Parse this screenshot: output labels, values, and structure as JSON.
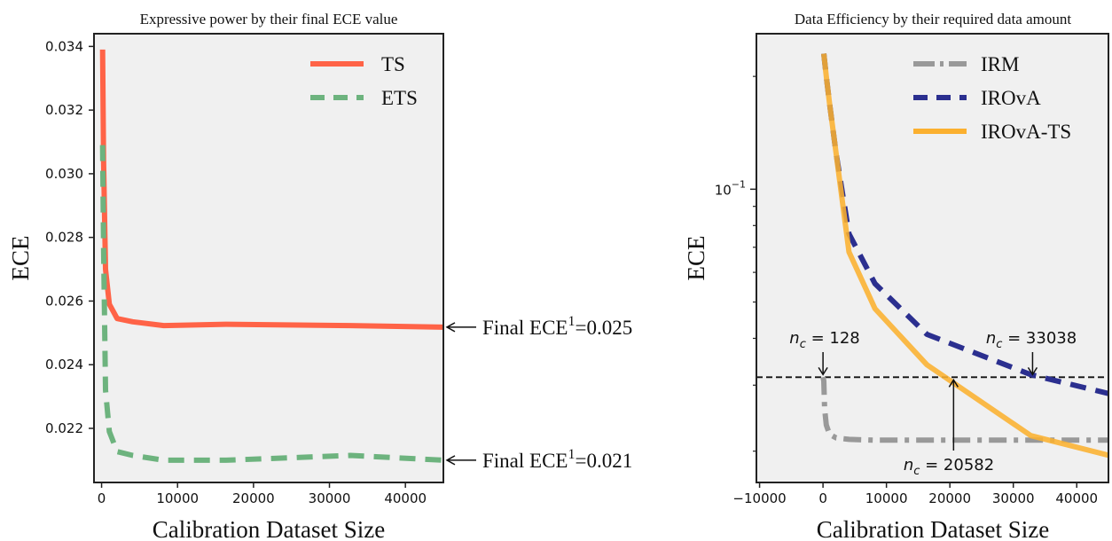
{
  "colors": {
    "panel_bg": "#f0f0f0",
    "ts": "#ff6347",
    "ets": "#6db37e",
    "irm": "#999999",
    "irova": "#2b2f8f",
    "irova_ts": "#fbb02f"
  },
  "chart_data": [
    {
      "type": "line",
      "title": "Expressive power by their final ECE value",
      "xlabel": "Calibration Dataset Size",
      "ylabel": "ECE",
      "xlim": [
        -1000,
        45000
      ],
      "ylim": [
        0.0203,
        0.0344
      ],
      "xticks": [
        0,
        10000,
        20000,
        30000,
        40000
      ],
      "xtick_labels": [
        "0",
        "10000",
        "20000",
        "30000",
        "40000"
      ],
      "yticks": [
        0.022,
        0.024,
        0.026,
        0.028,
        0.03,
        0.032,
        0.034
      ],
      "ytick_labels": [
        "0.022",
        "0.024",
        "0.026",
        "0.028",
        "0.030",
        "0.032",
        "0.034"
      ],
      "legend_position": "top-right",
      "grid": false,
      "series": [
        {
          "name": "TS",
          "style": "solid",
          "x": [
            128,
            256,
            512,
            1024,
            2048,
            4096,
            8192,
            16384,
            32768,
            45000
          ],
          "y": [
            0.0339,
            0.0304,
            0.027,
            0.0259,
            0.02545,
            0.02535,
            0.02523,
            0.02527,
            0.02523,
            0.02518
          ]
        },
        {
          "name": "ETS",
          "style": "dashed",
          "x": [
            128,
            256,
            512,
            1024,
            2048,
            4096,
            8192,
            16384,
            32768,
            45000
          ],
          "y": [
            0.0309,
            0.0277,
            0.0232,
            0.0219,
            0.02127,
            0.02115,
            0.021,
            0.021,
            0.02115,
            0.021
          ]
        }
      ],
      "annotations": [
        {
          "prefix": "Final ECE",
          "sup": "1",
          "suffix": "=0.025",
          "y": 0.02518
        },
        {
          "prefix": "Final ECE",
          "sup": "1",
          "suffix": "=0.021",
          "y": 0.021
        }
      ]
    },
    {
      "type": "line",
      "title": "Data Efficiency by their required data amount",
      "xlabel": "Calibration Dataset Size",
      "ylabel": "ECE",
      "xlim": [
        -10500,
        45000
      ],
      "ylim": [
        0.0165,
        0.26
      ],
      "yscale": "log",
      "xticks": [
        -10000,
        0,
        10000,
        20000,
        30000,
        40000
      ],
      "xtick_labels": [
        "−10000",
        "0",
        "10000",
        "20000",
        "30000",
        "40000"
      ],
      "yticks": [
        0.1
      ],
      "ytick_labels": [
        {
          "base": "10",
          "exp": "−1"
        }
      ],
      "legend_position": "top-right",
      "grid": false,
      "threshold_ece": 0.0315,
      "series": [
        {
          "name": "IRM",
          "style": "dashdot",
          "x": [
            0,
            128,
            256,
            512,
            1024,
            2048,
            4096,
            8192,
            16384,
            32768,
            45000
          ],
          "y": [
            0.0315,
            0.0308,
            0.026,
            0.0235,
            0.0222,
            0.0217,
            0.0215,
            0.0214,
            0.0214,
            0.0214,
            0.0214
          ]
        },
        {
          "name": "IROvA",
          "style": "dashed",
          "x": [
            128,
            512,
            1024,
            2048,
            4096,
            8192,
            16384,
            32768,
            45000
          ],
          "y": [
            0.23,
            0.2,
            0.17,
            0.125,
            0.076,
            0.056,
            0.041,
            0.032,
            0.0285
          ]
        },
        {
          "name": "IROvA-TS",
          "style": "solid",
          "x": [
            128,
            512,
            1024,
            2048,
            4096,
            8192,
            16384,
            32768,
            45000
          ],
          "y": [
            0.23,
            0.2,
            0.17,
            0.125,
            0.068,
            0.048,
            0.034,
            0.022,
            0.0195
          ]
        }
      ],
      "annotations": [
        {
          "var": "n",
          "sub": "c",
          "value": "128",
          "x": 0
        },
        {
          "var": "n",
          "sub": "c",
          "value": "33038",
          "x": 33038
        },
        {
          "var": "n",
          "sub": "c",
          "value": "20582",
          "x": 20582
        }
      ]
    }
  ]
}
